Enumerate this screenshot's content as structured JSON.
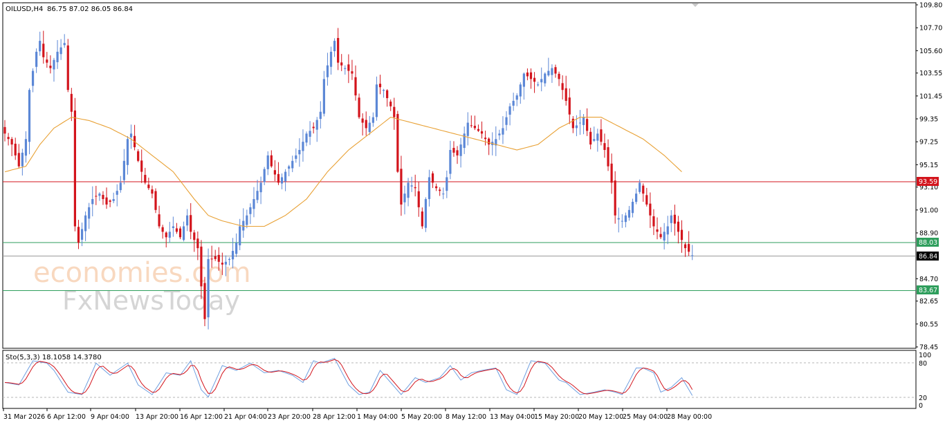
{
  "header": {
    "symbol": "OILUSD,H4",
    "ohlc": "86.75 87.02 86.05 86.84"
  },
  "watermark": {
    "line1": "economies.com",
    "line2": "FxNewsToday"
  },
  "indicator": {
    "label": "Sto(5,3,3) 18.1058 14.3780",
    "levels": [
      "100",
      "80",
      "20",
      "0"
    ]
  },
  "price_labels": {
    "red_line": "93.59",
    "green_upper": "88.03",
    "current": "86.84",
    "green_lower": "83.67"
  },
  "colors": {
    "bull": "#5b87d6",
    "bear": "#d3141c",
    "ma": "#e8a033",
    "red_line": "#d3141c",
    "green_line": "#2e9e5c",
    "current_line": "#9a9a9a",
    "stoch_main": "#6e9fe0",
    "stoch_signal": "#d3141c"
  },
  "chart_data": {
    "type": "candlestick",
    "symbol": "OILUSD",
    "timeframe": "H4",
    "y_ticks": [
      "109.80",
      "107.70",
      "105.60",
      "103.55",
      "101.45",
      "99.35",
      "97.25",
      "95.15",
      "93.10",
      "91.00",
      "88.90",
      "86.84",
      "84.70",
      "82.65",
      "80.55",
      "78.45"
    ],
    "ylim": [
      78.45,
      109.8
    ],
    "x_ticks": [
      "31 Mar 2026",
      "6 Apr 12:00",
      "9 Apr 04:00",
      "13 Apr 20:00",
      "16 Apr 12:00",
      "21 Apr 04:00",
      "23 Apr 20:00",
      "28 Apr 12:00",
      "1 May 04:00",
      "5 May 20:00",
      "8 May 12:00",
      "13 May 04:00",
      "15 May 20:00",
      "20 May 12:00",
      "25 May 04:00",
      "28 May 00:00"
    ],
    "horizontal_levels": [
      {
        "value": 93.59,
        "color": "red"
      },
      {
        "value": 88.03,
        "color": "green"
      },
      {
        "value": 86.84,
        "color": "gray"
      },
      {
        "value": 83.67,
        "color": "green"
      }
    ],
    "price_path": [
      [
        0,
        98.0
      ],
      [
        2,
        97.0
      ],
      [
        4,
        95.0
      ],
      [
        6,
        97.5
      ],
      [
        7,
        102
      ],
      [
        9,
        105.5
      ],
      [
        10,
        106.5
      ],
      [
        11,
        105.0
      ],
      [
        13,
        104.0
      ],
      [
        15,
        105.5
      ],
      [
        17,
        106.3
      ],
      [
        18,
        102.0
      ],
      [
        19,
        100.0
      ],
      [
        20,
        89.5
      ],
      [
        21,
        88.0
      ],
      [
        23,
        90.5
      ],
      [
        25,
        92.0
      ],
      [
        27,
        92.5
      ],
      [
        29,
        91.5
      ],
      [
        31,
        92.0
      ],
      [
        33,
        93.5
      ],
      [
        35,
        97.5
      ],
      [
        36,
        98.0
      ],
      [
        38,
        95.5
      ],
      [
        40,
        93.5
      ],
      [
        42,
        92.5
      ],
      [
        44,
        89.5
      ],
      [
        46,
        88.5
      ],
      [
        48,
        89.5
      ],
      [
        50,
        88.5
      ],
      [
        52,
        90.5
      ],
      [
        53,
        89.0
      ],
      [
        55,
        87.5
      ],
      [
        56,
        84.0
      ],
      [
        57,
        81.0
      ],
      [
        58,
        86.5
      ],
      [
        60,
        86.5
      ],
      [
        62,
        86.0
      ],
      [
        64,
        86.5
      ],
      [
        66,
        88.0
      ],
      [
        67,
        89.5
      ],
      [
        69,
        90.5
      ],
      [
        71,
        92.0
      ],
      [
        73,
        93.5
      ],
      [
        75,
        96.0
      ],
      [
        76,
        95.0
      ],
      [
        78,
        93.5
      ],
      [
        80,
        94.5
      ],
      [
        82,
        95.5
      ],
      [
        84,
        96.5
      ],
      [
        86,
        98.0
      ],
      [
        88,
        98.5
      ],
      [
        90,
        100.0
      ],
      [
        91,
        103.0
      ],
      [
        93,
        105.5
      ],
      [
        94,
        106.5
      ],
      [
        95,
        104.5
      ],
      [
        97,
        104.0
      ],
      [
        99,
        103.5
      ],
      [
        101,
        99.5
      ],
      [
        103,
        98.5
      ],
      [
        105,
        99.5
      ],
      [
        106,
        102.5
      ],
      [
        108,
        102.0
      ],
      [
        110,
        100.5
      ],
      [
        111,
        99.5
      ],
      [
        112,
        94.5
      ],
      [
        113,
        91.5
      ],
      [
        115,
        93.5
      ],
      [
        117,
        93.0
      ],
      [
        119,
        89.5
      ],
      [
        120,
        92.0
      ],
      [
        121,
        94.0
      ],
      [
        123,
        93.0
      ],
      [
        125,
        92.5
      ],
      [
        126,
        94.0
      ],
      [
        127,
        96.5
      ],
      [
        129,
        96.0
      ],
      [
        130,
        97.0
      ],
      [
        132,
        99.0
      ],
      [
        134,
        98.5
      ],
      [
        136,
        98.0
      ],
      [
        138,
        97.0
      ],
      [
        140,
        97.5
      ],
      [
        142,
        98.5
      ],
      [
        144,
        100.5
      ],
      [
        146,
        101.5
      ],
      [
        148,
        103.5
      ],
      [
        150,
        103.0
      ],
      [
        152,
        102.5
      ],
      [
        154,
        103.5
      ],
      [
        156,
        104.0
      ],
      [
        158,
        103.0
      ],
      [
        160,
        101.0
      ],
      [
        162,
        98.5
      ],
      [
        164,
        99.0
      ],
      [
        165,
        99.5
      ],
      [
        167,
        97.0
      ],
      [
        169,
        98.0
      ],
      [
        171,
        96.5
      ],
      [
        172,
        95.0
      ],
      [
        173,
        93.5
      ],
      [
        174,
        90.5
      ],
      [
        176,
        90.0
      ],
      [
        178,
        91.0
      ],
      [
        180,
        92.5
      ],
      [
        181,
        93.5
      ],
      [
        183,
        91.5
      ],
      [
        185,
        89.5
      ],
      [
        187,
        88.5
      ],
      [
        189,
        89.5
      ],
      [
        190,
        90.5
      ],
      [
        192,
        89.0
      ],
      [
        194,
        87.5
      ],
      [
        196,
        86.84
      ]
    ],
    "moving_average": [
      [
        0,
        94.5
      ],
      [
        6,
        95.0
      ],
      [
        10,
        97.0
      ],
      [
        14,
        98.5
      ],
      [
        19,
        99.5
      ],
      [
        24,
        99.2
      ],
      [
        30,
        98.5
      ],
      [
        36,
        97.5
      ],
      [
        42,
        96.0
      ],
      [
        48,
        94.5
      ],
      [
        54,
        92.0
      ],
      [
        58,
        90.5
      ],
      [
        62,
        90.0
      ],
      [
        68,
        89.5
      ],
      [
        74,
        89.5
      ],
      [
        80,
        90.5
      ],
      [
        86,
        92.0
      ],
      [
        92,
        94.5
      ],
      [
        98,
        96.5
      ],
      [
        104,
        98.0
      ],
      [
        110,
        99.5
      ],
      [
        116,
        99.0
      ],
      [
        122,
        98.5
      ],
      [
        128,
        98.0
      ],
      [
        134,
        97.5
      ],
      [
        140,
        97.0
      ],
      [
        146,
        96.5
      ],
      [
        152,
        97.0
      ],
      [
        158,
        98.5
      ],
      [
        164,
        99.5
      ],
      [
        170,
        99.5
      ],
      [
        176,
        98.5
      ],
      [
        182,
        97.5
      ],
      [
        188,
        96.0
      ],
      [
        193,
        94.5
      ]
    ],
    "stochastic": {
      "label": "Sto(5,3,3)",
      "main_last": 18.1058,
      "signal_last": 14.378,
      "levels": [
        80,
        20
      ],
      "ylim": [
        0,
        100
      ],
      "path": [
        [
          0,
          45
        ],
        [
          4,
          40
        ],
        [
          8,
          90
        ],
        [
          12,
          85
        ],
        [
          14,
          70
        ],
        [
          18,
          25
        ],
        [
          22,
          20
        ],
        [
          26,
          85
        ],
        [
          30,
          60
        ],
        [
          32,
          70
        ],
        [
          35,
          85
        ],
        [
          38,
          40
        ],
        [
          42,
          20
        ],
        [
          46,
          65
        ],
        [
          50,
          60
        ],
        [
          53,
          90
        ],
        [
          56,
          30
        ],
        [
          58,
          15
        ],
        [
          62,
          80
        ],
        [
          66,
          70
        ],
        [
          70,
          85
        ],
        [
          74,
          65
        ],
        [
          78,
          70
        ],
        [
          82,
          60
        ],
        [
          85,
          45
        ],
        [
          88,
          90
        ],
        [
          90,
          85
        ],
        [
          94,
          95
        ],
        [
          98,
          40
        ],
        [
          101,
          20
        ],
        [
          104,
          25
        ],
        [
          107,
          70
        ],
        [
          110,
          45
        ],
        [
          113,
          20
        ],
        [
          117,
          55
        ],
        [
          120,
          45
        ],
        [
          124,
          55
        ],
        [
          127,
          80
        ],
        [
          130,
          50
        ],
        [
          133,
          65
        ],
        [
          136,
          70
        ],
        [
          140,
          75
        ],
        [
          143,
          30
        ],
        [
          146,
          20
        ],
        [
          150,
          90
        ],
        [
          154,
          85
        ],
        [
          158,
          50
        ],
        [
          160,
          45
        ],
        [
          164,
          20
        ],
        [
          168,
          25
        ],
        [
          171,
          30
        ],
        [
          174,
          25
        ],
        [
          176,
          20
        ],
        [
          180,
          75
        ],
        [
          182,
          75
        ],
        [
          185,
          65
        ],
        [
          187,
          25
        ],
        [
          190,
          35
        ],
        [
          193,
          55
        ],
        [
          196,
          18
        ]
      ]
    }
  }
}
